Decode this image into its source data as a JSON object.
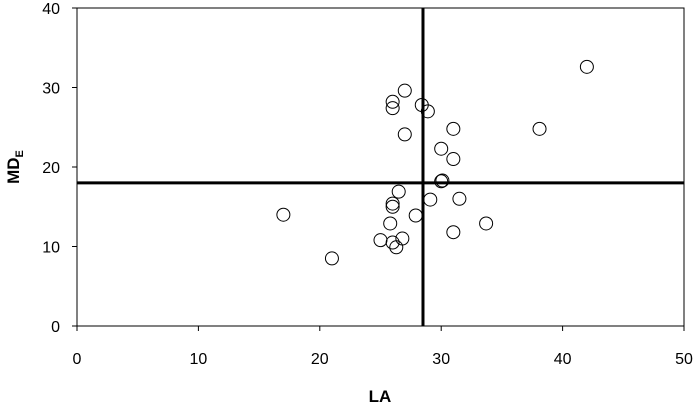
{
  "chart_data": {
    "type": "scatter",
    "title": "",
    "xlabel": "LA",
    "ylabel_main": "MD",
    "ylabel_sub": "E",
    "xlim": [
      0,
      50
    ],
    "ylim": [
      0,
      40
    ],
    "x_ticks": [
      0,
      10,
      20,
      30,
      40,
      50
    ],
    "y_ticks": [
      0,
      10,
      20,
      30,
      40
    ],
    "grid": false,
    "legend": "none",
    "reference_lines": {
      "x": 28.5,
      "y": 18
    },
    "marker_color": "#000000",
    "points": [
      {
        "x": 17.0,
        "y": 14.0
      },
      {
        "x": 21.0,
        "y": 8.5
      },
      {
        "x": 25.0,
        "y": 10.8
      },
      {
        "x": 25.8,
        "y": 12.9
      },
      {
        "x": 26.0,
        "y": 10.5
      },
      {
        "x": 26.0,
        "y": 15.0
      },
      {
        "x": 26.0,
        "y": 15.4
      },
      {
        "x": 26.0,
        "y": 27.4
      },
      {
        "x": 26.0,
        "y": 28.2
      },
      {
        "x": 26.3,
        "y": 9.9
      },
      {
        "x": 26.5,
        "y": 16.9
      },
      {
        "x": 26.8,
        "y": 11.0
      },
      {
        "x": 27.0,
        "y": 24.1
      },
      {
        "x": 27.0,
        "y": 29.6
      },
      {
        "x": 27.9,
        "y": 13.9
      },
      {
        "x": 28.4,
        "y": 27.8
      },
      {
        "x": 28.9,
        "y": 27.0
      },
      {
        "x": 29.1,
        "y": 15.9
      },
      {
        "x": 30.0,
        "y": 18.2
      },
      {
        "x": 30.0,
        "y": 22.3
      },
      {
        "x": 30.1,
        "y": 18.3
      },
      {
        "x": 31.0,
        "y": 11.8
      },
      {
        "x": 31.0,
        "y": 21.0
      },
      {
        "x": 31.0,
        "y": 24.8
      },
      {
        "x": 31.5,
        "y": 16.0
      },
      {
        "x": 33.7,
        "y": 12.9
      },
      {
        "x": 38.1,
        "y": 24.8
      },
      {
        "x": 42.0,
        "y": 32.6
      }
    ]
  }
}
